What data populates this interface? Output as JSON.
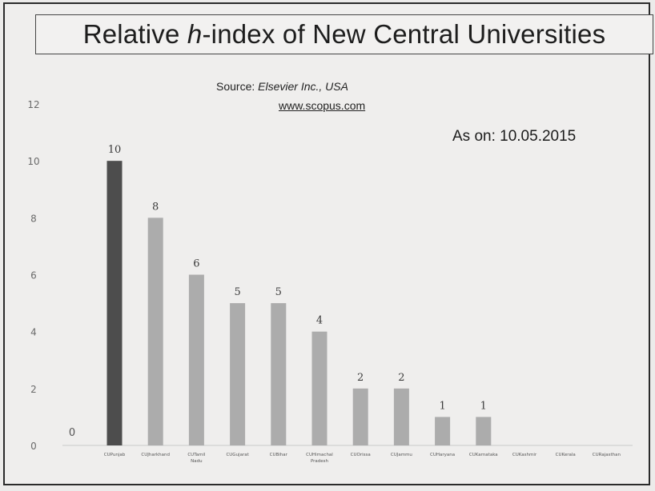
{
  "title": {
    "prefix": "Relative ",
    "italic": "h",
    "suffix": "-index of New Central Universities"
  },
  "source": {
    "label": "Source: ",
    "value": "Elsevier Inc., USA",
    "url": "www.scopus.com"
  },
  "as_on": "As on: 10.05.2015",
  "chart_data": {
    "type": "bar",
    "ylim": [
      0,
      12
    ],
    "yticks": [
      0,
      2,
      4,
      6,
      8,
      10,
      12
    ],
    "categories": [
      "CUPunjab",
      "CUJharkhand",
      "CUTamil Nadu",
      "CUGujarat",
      "CUBihar",
      "CUHimachal Pradesh",
      "CUOrissa",
      "CUJammu",
      "CUHaryana",
      "CUKarnataka",
      "CUKashmir",
      "CUKerala",
      "CURajasthan"
    ],
    "values": [
      10,
      8,
      6,
      5,
      5,
      4,
      2,
      2,
      1,
      1,
      0,
      0,
      0
    ],
    "stray_label": "0",
    "colors": {
      "highlight": "#4d4d4d",
      "bar": "#acacac",
      "axis_text": "#6a6a6a"
    }
  }
}
